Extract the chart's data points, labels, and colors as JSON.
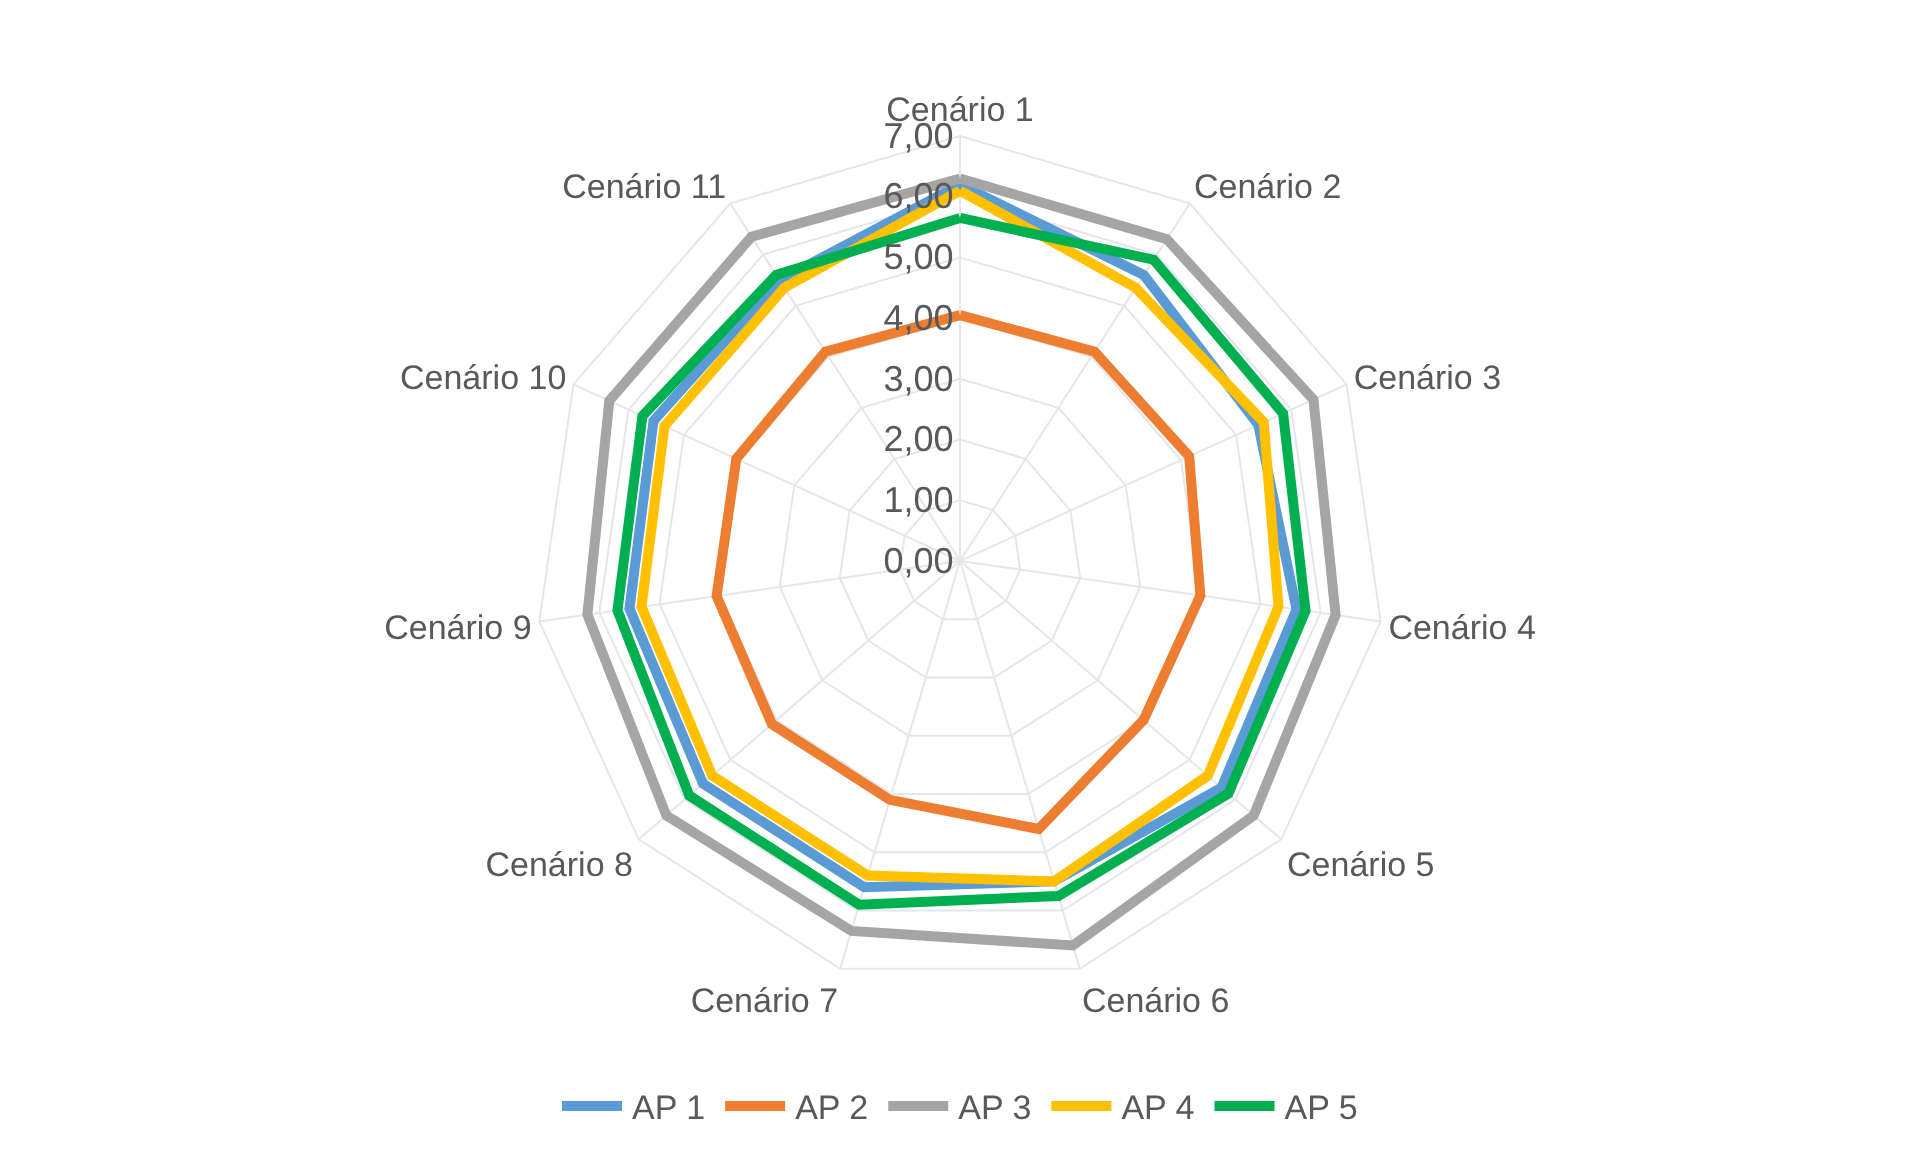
{
  "chart_data": {
    "type": "radar",
    "categories": [
      "Cenário 1",
      "Cenário 2",
      "Cenário 3",
      "Cenário 4",
      "Cenário 5",
      "Cenário 6",
      "Cenário 7",
      "Cenário 8",
      "Cenário 9",
      "Cenário 10",
      "Cenário 11"
    ],
    "series": [
      {
        "name": "AP 1",
        "color": "#5b9bd5",
        "values": [
          6.2,
          5.6,
          5.4,
          5.6,
          5.7,
          5.5,
          5.6,
          5.6,
          5.5,
          5.55,
          5.5
        ]
      },
      {
        "name": "AP 2",
        "color": "#ed7d31",
        "values": [
          4.05,
          4.1,
          4.15,
          4.0,
          4.0,
          4.6,
          4.1,
          4.1,
          4.05,
          4.05,
          4.1
        ]
      },
      {
        "name": "AP 3",
        "color": "#a5a5a5",
        "values": [
          6.3,
          6.3,
          6.4,
          6.25,
          6.4,
          6.6,
          6.35,
          6.4,
          6.2,
          6.35,
          6.35
        ]
      },
      {
        "name": "AP 4",
        "color": "#ffc000",
        "values": [
          6.1,
          5.35,
          5.5,
          5.3,
          5.4,
          5.5,
          5.4,
          5.4,
          5.3,
          5.35,
          5.35
        ]
      },
      {
        "name": "AP 5",
        "color": "#00b050",
        "values": [
          5.65,
          5.9,
          5.85,
          5.75,
          5.85,
          5.75,
          5.9,
          5.9,
          5.7,
          5.75,
          5.6
        ]
      }
    ],
    "ylim": [
      0,
      7
    ],
    "yticks": [
      {
        "value": 0,
        "label": "0,00"
      },
      {
        "value": 1,
        "label": "1,00"
      },
      {
        "value": 2,
        "label": "2,00"
      },
      {
        "value": 3,
        "label": "3,00"
      },
      {
        "value": 4,
        "label": "4,00"
      },
      {
        "value": 5,
        "label": "5,00"
      },
      {
        "value": 6,
        "label": "6,00"
      },
      {
        "value": 7,
        "label": "7,00"
      }
    ],
    "grid": true,
    "legend": "bottom",
    "marker": "none",
    "line_style": "solid"
  }
}
